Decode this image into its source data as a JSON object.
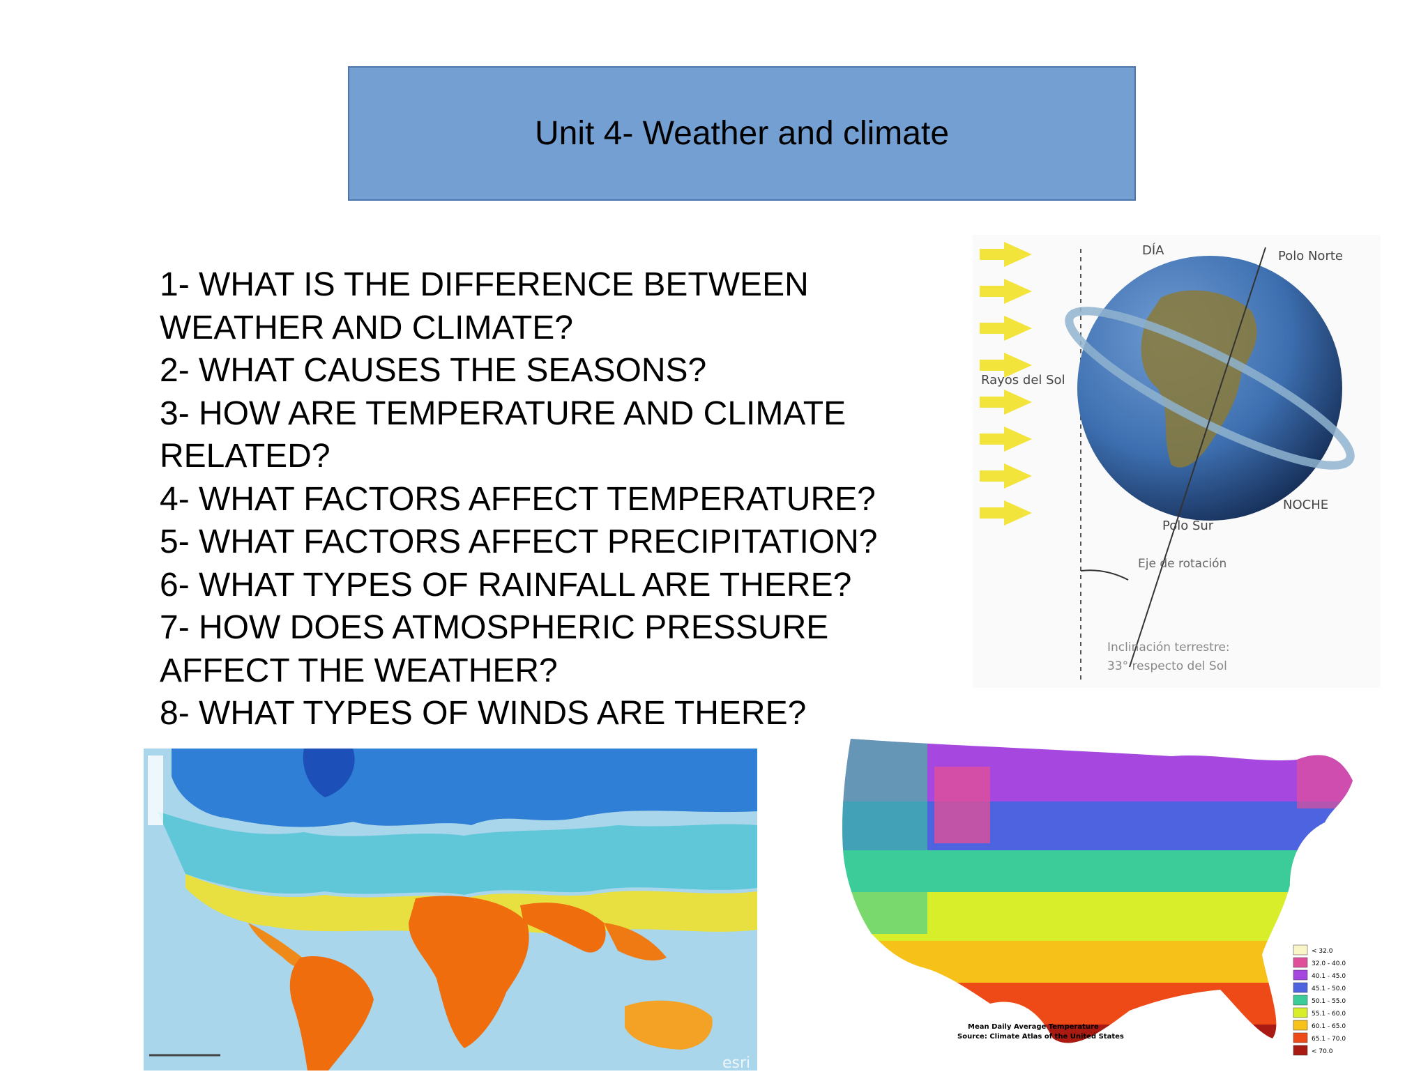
{
  "title": "Unit 4- Weather and climate",
  "questions": [
    "1- WHAT IS THE DIFFERENCE BETWEEN",
    "WEATHER AND CLIMATE?",
    "2- WHAT CAUSES THE SEASONS?",
    "3- HOW ARE TEMPERATURE AND CLIMATE",
    "RELATED?",
    "4- WHAT FACTORS AFFECT TEMPERATURE?",
    "5- WHAT FACTORS AFFECT PRECIPITATION?",
    "6- WHAT TYPES OF RAINFALL ARE THERE?",
    "7- HOW DOES ATMOSPHERIC PRESSURE",
    "AFFECT THE WEATHER?",
    "8- WHAT TYPES OF WINDS ARE THERE?"
  ],
  "seasons_diagram": {
    "dia": "DÍA",
    "polo_norte": "Polo Norte",
    "rayos_del_sol": "Rayos del Sol",
    "noche": "NOCHE",
    "polo_sur": "Polo Sur",
    "eje_de_rotacion": "Eje de rotación",
    "inclinacion_line1": "Inclinación terrestre:",
    "inclinacion_line2": "33° respecto del Sol",
    "colors": {
      "arrow": "#f2e43a",
      "globe": "#3d6fb0",
      "land": "#8a7a3a"
    }
  },
  "world_map": {
    "attribution": "esri",
    "colors": {
      "ocean": "#a9d6ea",
      "cold": "#2f7fd6",
      "mild": "#e8e040",
      "hot": "#ef6d0d"
    }
  },
  "us_map": {
    "caption_line1": "Mean Daily Average Temperature",
    "caption_line2": "Source: Climate Atlas of the United States",
    "legend": [
      {
        "label": "< 32.0",
        "color": "#fbf6c8"
      },
      {
        "label": "32.0 - 40.0",
        "color": "#e0509a"
      },
      {
        "label": "40.1 - 45.0",
        "color": "#a648e0"
      },
      {
        "label": "45.1 - 50.0",
        "color": "#4d63e0"
      },
      {
        "label": "50.1 - 55.0",
        "color": "#3ccc9a"
      },
      {
        "label": "55.1 - 60.0",
        "color": "#d8ee2a"
      },
      {
        "label": "60.1 - 65.0",
        "color": "#f6c21a"
      },
      {
        "label": "65.1 - 70.0",
        "color": "#ee4a18"
      },
      {
        "label": "< 70.0",
        "color": "#a81a12"
      }
    ]
  }
}
